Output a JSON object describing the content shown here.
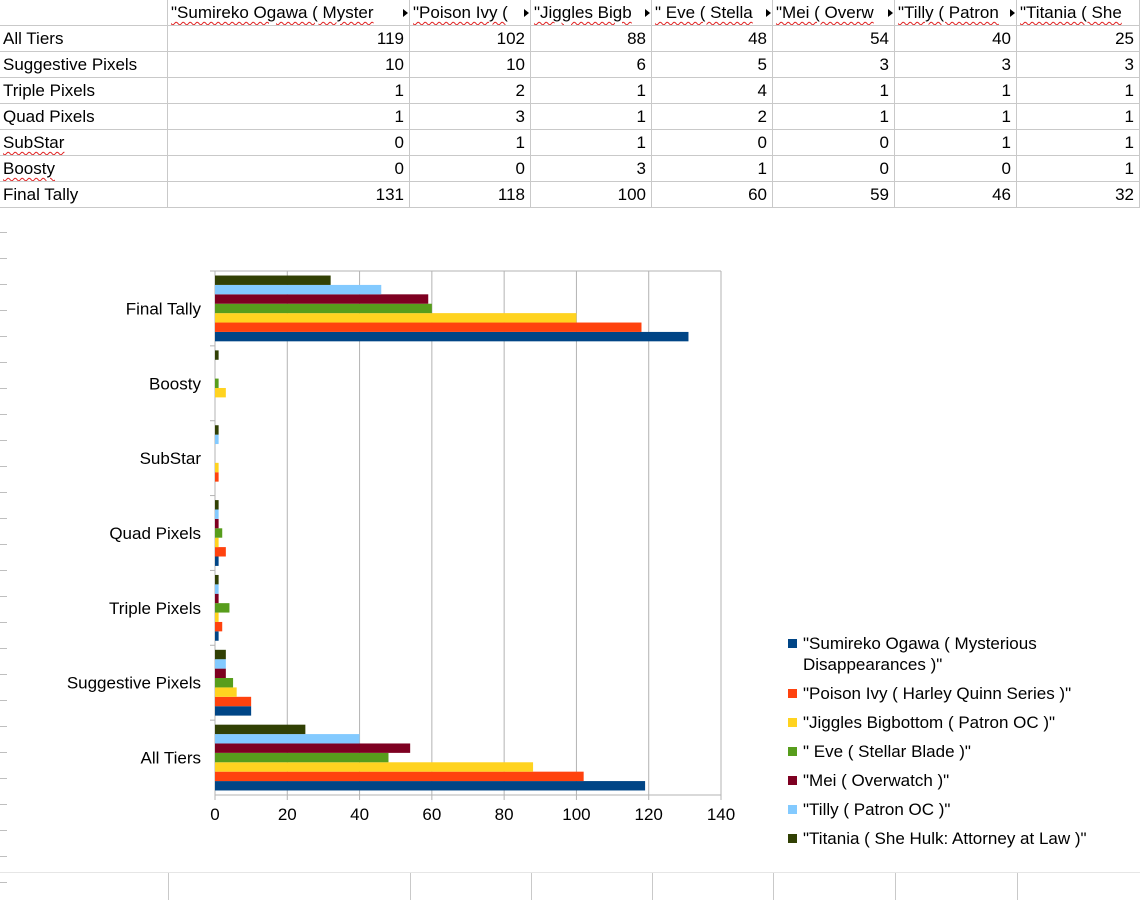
{
  "sheet": {
    "headers": [
      "\"Sumireko Ogawa ( Myster",
      "\"Poison Ivy ( ",
      "\"Jiggles Bigb",
      "\" Eve ( Stella",
      "\"Mei ( Overw",
      "\"Tilly ( Patron",
      "\"Titania ( She"
    ],
    "header_truncated": [
      true,
      true,
      true,
      true,
      true,
      true,
      false
    ],
    "rows": [
      {
        "label": "All Tiers",
        "values": [
          "119",
          "102",
          "88",
          "48",
          "54",
          "40",
          "25"
        ]
      },
      {
        "label": "Suggestive Pixels",
        "values": [
          "10",
          "10",
          "6",
          "5",
          "3",
          "3",
          "3"
        ]
      },
      {
        "label": "Triple Pixels",
        "values": [
          "1",
          "2",
          "1",
          "4",
          "1",
          "1",
          "1"
        ]
      },
      {
        "label": "Quad Pixels",
        "values": [
          "1",
          "3",
          "1",
          "2",
          "1",
          "1",
          "1"
        ]
      },
      {
        "label": "SubStar",
        "values": [
          "0",
          "1",
          "1",
          "0",
          "0",
          "1",
          "1"
        ]
      },
      {
        "label": "Boosty",
        "values": [
          "0",
          "0",
          "3",
          "1",
          "0",
          "0",
          "1"
        ]
      },
      {
        "label": "Final Tally",
        "values": [
          "131",
          "118",
          "100",
          "60",
          "59",
          "46",
          "32"
        ]
      }
    ]
  },
  "chart_data": {
    "type": "bar",
    "orientation": "horizontal",
    "categories": [
      "All Tiers",
      "Suggestive Pixels",
      "Triple Pixels",
      "Quad Pixels",
      "SubStar",
      "Boosty",
      "Final Tally"
    ],
    "series": [
      {
        "name": "\"Sumireko Ogawa ( Mysterious Disappearances )\"",
        "color": "#004586",
        "values": [
          119,
          10,
          1,
          1,
          0,
          0,
          131
        ]
      },
      {
        "name": "\"Poison Ivy ( Harley Quinn Series )\"",
        "color": "#ff420e",
        "values": [
          102,
          10,
          2,
          3,
          1,
          0,
          118
        ]
      },
      {
        "name": "\"Jiggles Bigbottom ( Patron OC )\"",
        "color": "#ffd320",
        "values": [
          88,
          6,
          1,
          1,
          1,
          3,
          100
        ]
      },
      {
        "name": "\" Eve ( Stellar Blade )\"",
        "color": "#579d1c",
        "values": [
          48,
          5,
          4,
          2,
          0,
          1,
          60
        ]
      },
      {
        "name": "\"Mei ( Overwatch )\"",
        "color": "#7e0021",
        "values": [
          54,
          3,
          1,
          1,
          0,
          0,
          59
        ]
      },
      {
        "name": "\"Tilly ( Patron OC )\"",
        "color": "#83caff",
        "values": [
          40,
          3,
          1,
          1,
          1,
          0,
          46
        ]
      },
      {
        "name": "\"Titania ( She Hulk: Attorney at Law )\"",
        "color": "#314004",
        "values": [
          25,
          3,
          1,
          1,
          1,
          1,
          32
        ]
      }
    ],
    "xlim": [
      0,
      140
    ],
    "xticks": [
      0,
      20,
      40,
      60,
      80,
      100,
      120,
      140
    ],
    "grid": true,
    "legend_position": "right",
    "legend_lines": [
      [
        "\"Sumireko Ogawa ( Mysterious",
        "Disappearances )\""
      ],
      [
        "\"Poison Ivy ( Harley Quinn Series )\""
      ],
      [
        "\"Jiggles Bigbottom ( Patron OC )\""
      ],
      [
        "\" Eve ( Stellar Blade )\""
      ],
      [
        "\"Mei ( Overwatch )\""
      ],
      [
        "\"Tilly ( Patron OC )\""
      ],
      [
        "\"Titania ( She Hulk: Attorney at Law )\""
      ]
    ]
  }
}
